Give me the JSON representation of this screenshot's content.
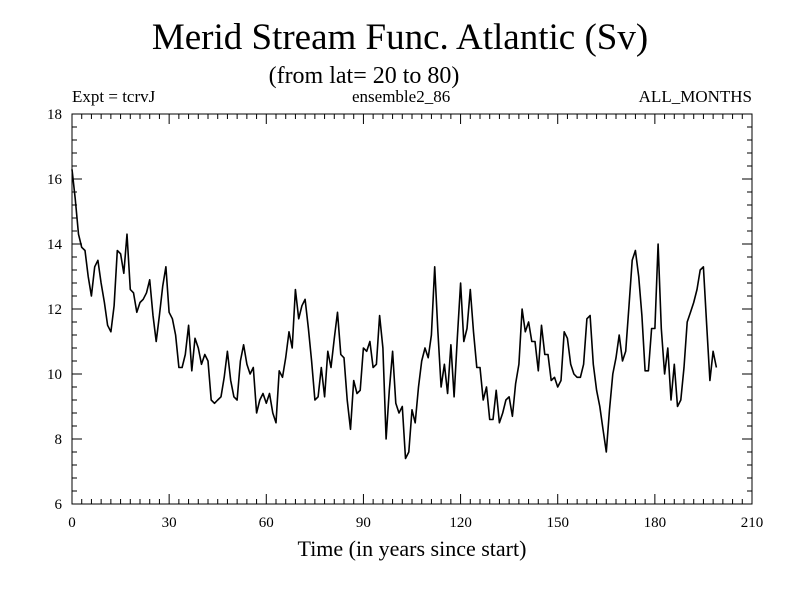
{
  "header": {
    "title": "Merid Stream Func. Atlantic (Sv)",
    "subtitle": "(from lat= 20 to 80)",
    "expt": "Expt = tcrvJ",
    "ensemble": "ensemble2_86",
    "months": "ALL_MONTHS"
  },
  "chart_data": {
    "type": "line",
    "title": "Merid Stream Func. Atlantic (Sv)",
    "subtitle": "(from lat= 20 to 80)",
    "xlabel": "Time (in years since start)",
    "ylabel": "",
    "xlim": [
      0,
      210
    ],
    "ylim": [
      6,
      18
    ],
    "xticks": [
      0,
      30,
      60,
      90,
      120,
      150,
      180,
      210
    ],
    "yticks": [
      6,
      8,
      10,
      12,
      14,
      16,
      18
    ],
    "x_tick_labels": [
      "0",
      "30",
      "60",
      "90",
      "120",
      "150",
      "180",
      "210"
    ],
    "y_tick_labels": [
      "6",
      "8",
      "10",
      "12",
      "14",
      "16",
      "18"
    ],
    "grid": false,
    "series": [
      {
        "name": "ensemble2_86",
        "x_start": 0,
        "x_step": 1,
        "values": [
          16.3,
          15.4,
          14.3,
          13.9,
          13.8,
          13.0,
          12.4,
          13.3,
          13.5,
          12.8,
          12.2,
          11.5,
          11.3,
          12.1,
          13.8,
          13.7,
          13.1,
          14.3,
          12.6,
          12.5,
          11.9,
          12.2,
          12.3,
          12.5,
          12.9,
          11.8,
          11.0,
          11.8,
          12.7,
          13.3,
          11.9,
          11.7,
          11.2,
          10.2,
          10.2,
          10.6,
          11.5,
          10.1,
          11.1,
          10.8,
          10.3,
          10.6,
          10.4,
          9.2,
          9.1,
          9.2,
          9.3,
          9.9,
          10.7,
          9.8,
          9.3,
          9.2,
          10.4,
          10.9,
          10.3,
          10.0,
          10.2,
          8.8,
          9.2,
          9.4,
          9.1,
          9.4,
          8.8,
          8.5,
          10.1,
          9.9,
          10.5,
          11.3,
          10.8,
          12.6,
          11.7,
          12.1,
          12.3,
          11.4,
          10.4,
          9.2,
          9.3,
          10.2,
          9.3,
          10.7,
          10.2,
          11.1,
          11.9,
          10.6,
          10.5,
          9.2,
          8.3,
          9.8,
          9.4,
          9.5,
          10.8,
          10.7,
          11.0,
          10.2,
          10.3,
          11.8,
          10.8,
          8.0,
          9.5,
          10.7,
          9.1,
          8.8,
          9.0,
          7.4,
          7.6,
          8.9,
          8.5,
          9.6,
          10.4,
          10.8,
          10.5,
          11.2,
          13.3,
          11.3,
          9.6,
          10.3,
          9.4,
          10.9,
          9.3,
          11.1,
          12.8,
          11.0,
          11.4,
          12.6,
          11.3,
          10.2,
          10.2,
          9.2,
          9.6,
          8.6,
          8.6,
          9.5,
          8.5,
          8.8,
          9.2,
          9.3,
          8.7,
          9.7,
          10.3,
          12.0,
          11.3,
          11.6,
          11.0,
          11.0,
          10.1,
          11.5,
          10.6,
          10.6,
          9.8,
          9.9,
          9.6,
          9.8,
          11.3,
          11.1,
          10.3,
          10.0,
          9.9,
          9.9,
          10.3,
          11.7,
          11.8,
          10.3,
          9.5,
          9.0,
          8.3,
          7.6,
          8.9,
          10.0,
          10.5,
          11.2,
          10.4,
          10.7,
          12.1,
          13.5,
          13.8,
          13.0,
          11.8,
          10.1,
          10.1,
          11.4,
          11.4,
          14.0,
          11.4,
          10.0,
          10.8,
          9.2,
          10.3,
          9.0,
          9.2,
          10.2,
          11.6,
          11.9,
          12.2,
          12.6,
          13.2,
          13.3,
          11.5,
          9.8,
          10.7,
          10.2
        ]
      }
    ]
  }
}
